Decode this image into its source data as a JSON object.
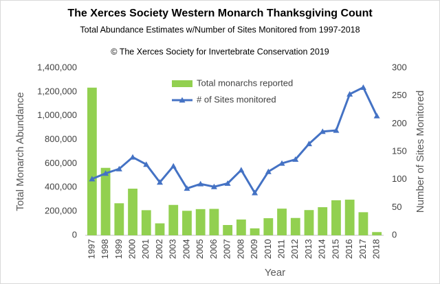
{
  "chart_data": {
    "type": "bar",
    "title": "The Xerces Society Western Monarch Thanksgiving Count",
    "subtitle": "Total Abundance Estimates w/Number of Sites Monitored from 1997-2018",
    "annotation": "© The Xerces Society for Invertebrate Conservation 2019",
    "x_label": "Year",
    "y_label": "Total Monarch Abundance",
    "y2_label": "Number of Sites Monitored",
    "categories": [
      "1997",
      "1998",
      "1999",
      "2000",
      "2001",
      "2002",
      "2003",
      "2004",
      "2005",
      "2006",
      "2007",
      "2008",
      "2009",
      "2010",
      "2011",
      "2012",
      "2013",
      "2014",
      "2015",
      "2016",
      "2017",
      "2018"
    ],
    "series": [
      {
        "name": "Total monarchs reported",
        "color": "#92d050",
        "type": "bar",
        "values": [
          1235000,
          564000,
          268000,
          390000,
          210000,
          100000,
          254000,
          205000,
          219000,
          221000,
          86000,
          132000,
          58000,
          143000,
          223000,
          145000,
          211000,
          235000,
          293000,
          298000,
          193000,
          27000
        ]
      },
      {
        "name": "# of Sites monitored",
        "color": "#4472c4",
        "type": "line",
        "axis": "y2",
        "values": [
          101,
          111,
          119,
          140,
          127,
          95,
          124,
          84,
          92,
          87,
          93,
          117,
          76,
          114,
          129,
          136,
          164,
          186,
          188,
          253,
          265,
          214
        ]
      }
    ],
    "ylim": [
      0,
      1400000
    ],
    "yticks": [
      0,
      {
        "value": 200000,
        "label": "200,000"
      },
      {
        "value": 400000,
        "label": "400,000"
      },
      {
        "value": 600000,
        "label": "600,000"
      },
      {
        "value": 800000,
        "label": "800,000"
      },
      {
        "value": 1000000,
        "label": "1,000,000"
      },
      {
        "value": 1200000,
        "label": "1,200,000"
      },
      {
        "value": 1400000,
        "label": "1,400,000"
      }
    ],
    "y2lim": [
      0,
      300
    ],
    "y2ticks": [
      0,
      50,
      100,
      150,
      200,
      250,
      300
    ],
    "grid": false,
    "legend": "top"
  }
}
